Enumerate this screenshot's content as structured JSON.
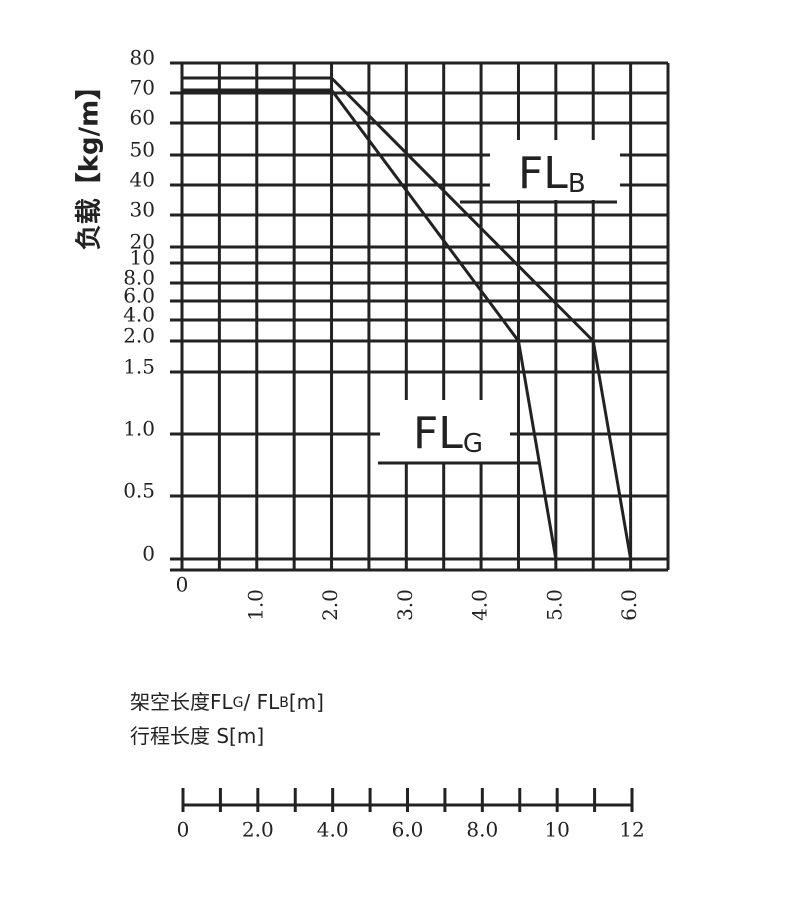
{
  "chart_data": {
    "type": "line",
    "ylabel": "负载【kg/m】",
    "series": [
      {
        "name": "FL",
        "subscript": "B",
        "color": "#222222",
        "x": [
          0,
          2.0,
          5.5,
          6.0
        ],
        "values": [
          75,
          75,
          2.0,
          0
        ]
      },
      {
        "name": "FL",
        "subscript": "G",
        "color": "#222222",
        "x": [
          0,
          2.0,
          4.5,
          5.0
        ],
        "values": [
          71,
          71,
          2.0,
          0
        ]
      }
    ],
    "xlim": [
      0,
      6.5
    ],
    "xticks": [
      0,
      {
        "value": 1,
        "label": "1.0"
      },
      {
        "value": 2,
        "label": "2.0"
      },
      {
        "value": 3,
        "label": "3.0"
      },
      {
        "value": 4,
        "label": "4.0"
      },
      {
        "value": 5,
        "label": "5.0"
      },
      {
        "value": 6,
        "label": "6.0"
      }
    ],
    "xminorticks": [
      0.5,
      1.5,
      2.5,
      3.5,
      4.5,
      5.5
    ],
    "ylim": [
      0,
      80
    ],
    "yticks": [
      80,
      70,
      60,
      50,
      40,
      30,
      20,
      10,
      {
        "value": 8,
        "label": "8.0"
      },
      {
        "value": 6,
        "label": "6.0"
      },
      {
        "value": 4,
        "label": "4.0"
      },
      {
        "value": 2,
        "label": "2.0"
      },
      1.5,
      {
        "value": 1,
        "label": "1.0"
      },
      0.5,
      0
    ],
    "grid": true,
    "xlabel_lines": [
      [
        "架空长度FL",
        "G",
        "/ FL",
        "B",
        "[m]"
      ],
      [
        "行程长度 S[m]"
      ]
    ],
    "s_axis": {
      "lim": [
        0,
        12
      ],
      "ticks": [
        0,
        {
          "value": 2,
          "label": "2.0"
        },
        {
          "value": 4,
          "label": "4.0"
        },
        {
          "value": 6,
          "label": "6.0"
        },
        {
          "value": 8,
          "label": "8.0"
        },
        10,
        12
      ],
      "minorticks": [
        1,
        3,
        5,
        7,
        9,
        11
      ]
    }
  }
}
